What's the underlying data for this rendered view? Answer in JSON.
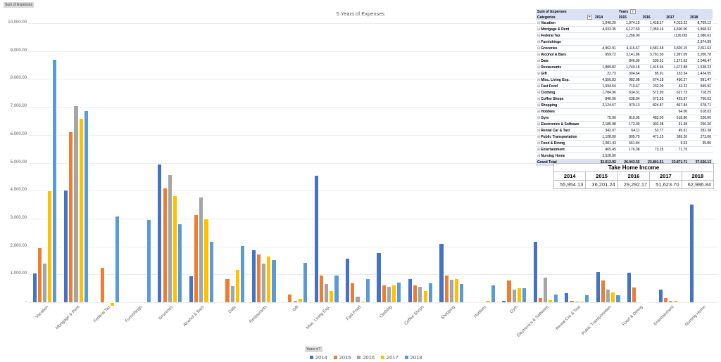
{
  "field_buttons": {
    "values_field": "Sum of Expenses",
    "legend_field": "Years"
  },
  "chart_data": {
    "type": "bar",
    "title": "5 Years of Expenses",
    "xlabel": "",
    "ylabel": "",
    "ylim": [
      0,
      10000
    ],
    "yticks": [
      "-",
      "1,000.00",
      "2,000.00",
      "3,000.00",
      "4,000.00",
      "5,000.00",
      "6,000.00",
      "7,000.00",
      "8,000.00",
      "9,000.00",
      "10,000.00"
    ],
    "grid": true,
    "legend_position": "bottom",
    "categories": [
      "Vacation",
      "Mortgage & Rent",
      "Federal Tax",
      "Furnishings",
      "Groceries",
      "Alcohol & Bars",
      "Date",
      "Restaurants",
      "Gift",
      "Misc. Living Exp.",
      "Fast Food",
      "Clothing",
      "Coffee Shops",
      "Shopping",
      "Hobbies",
      "Gym",
      "Electronics & Software",
      "Rental Car & Taxi",
      "Public Transportation",
      "Food & Dining",
      "Entertainment",
      "Nursing Home"
    ],
    "series": [
      {
        "name": "2014",
        "color": "#4472c4",
        "values": [
          1049.2,
          4033.35,
          null,
          null,
          4962.91,
          959.72,
          null,
          1889.82,
          22.73,
          4556.03,
          1594.64,
          1784.96,
          846.06,
          2124.57,
          null,
          75.0,
          2185.98,
          342.07,
          1108.0,
          1081.43,
          469.45,
          3528.0
        ]
      },
      {
        "name": "2015",
        "color": "#ed7d31",
        "values": [
          1974.19,
          6127.5,
          1266.0,
          null,
          4116.67,
          3141.86,
          846.9,
          1740.18,
          304.64,
          982.08,
          710.67,
          634.31,
          638.04,
          970.13,
          null,
          810.05,
          172.3,
          64.11,
          805.7,
          561.84,
          176.38,
          null
        ]
      },
      {
        "name": "2016",
        "color": "#a5a5a5",
        "values": [
          1418.17,
          7059.16,
          null,
          null,
          4581.68,
          3781.5,
          599.51,
          1415.94,
          85.91,
          674.18,
          232.09,
          572.9,
          572.35,
          824.87,
          null,
          483.0,
          902.08,
          53.77,
          471.15,
          null,
          73.25,
          null
        ]
      },
      {
        "name": "2017",
        "color": "#ffc000",
        "values": [
          4013.22,
          6600.0,
          -126.0,
          null,
          3820.15,
          2997.09,
          1171.63,
          1672.88,
          153.34,
          430.27,
          43.22,
          627.73,
          429.97,
          867.84,
          64.0,
          518.8,
          91.38,
          45.61,
          369.2,
          9.63,
          71.75,
          null
        ]
      },
      {
        "name": "2018",
        "color": "#5b9bd5",
        "values": [
          8709.12,
          6868.32,
          3086.63,
          2974.99,
          2811.63,
          2200.78,
          2048.47,
          1538.23,
          1424.05,
          991.47,
          849.92,
          718.25,
          700.03,
          678.71,
          618.03,
          520.0,
          296.26,
          282.38,
          273.0,
          35.86,
          null,
          null
        ]
      }
    ]
  },
  "pivot_table": {
    "corner_label": "Sum of Expenses",
    "column_field": "Years",
    "row_field": "Categories",
    "years": [
      "2014",
      "2015",
      "2016",
      "2017",
      "2018"
    ],
    "rows": [
      {
        "category": "Vacation",
        "values": [
          "1,049.20",
          "1,974.19",
          "1,418.17",
          "4,013.22",
          "8,709.12"
        ]
      },
      {
        "category": "Mortgage & Rent",
        "values": [
          "4,033.35",
          "6,127.50",
          "7,059.16",
          "6,600.00",
          "6,868.32"
        ]
      },
      {
        "category": "Federal Tax",
        "values": [
          "",
          "1,266.00",
          "",
          "(126.00)",
          "3,086.63"
        ]
      },
      {
        "category": "Furnishings",
        "values": [
          "",
          "",
          "",
          "",
          "2,974.99"
        ]
      },
      {
        "category": "Groceries",
        "values": [
          "4,962.91",
          "4,116.67",
          "4,581.68",
          "3,820.15",
          "2,811.63"
        ]
      },
      {
        "category": "Alcohol & Bars",
        "values": [
          "959.72",
          "3,141.86",
          "3,781.50",
          "2,997.09",
          "2,200.78"
        ]
      },
      {
        "category": "Date",
        "values": [
          "",
          "846.90",
          "599.51",
          "1,171.63",
          "2,048.47"
        ]
      },
      {
        "category": "Restaurants",
        "values": [
          "1,889.82",
          "1,740.18",
          "1,415.94",
          "1,672.88",
          "1,538.23"
        ]
      },
      {
        "category": "Gift",
        "values": [
          "22.73",
          "304.64",
          "85.91",
          "153.34",
          "1,424.05"
        ]
      },
      {
        "category": "Misc. Living Exp.",
        "values": [
          "4,556.03",
          "982.08",
          "674.18",
          "430.27",
          "991.47"
        ]
      },
      {
        "category": "Fast Food",
        "values": [
          "1,594.64",
          "710.67",
          "232.09",
          "43.22",
          "849.92"
        ]
      },
      {
        "category": "Clothing",
        "values": [
          "1,784.96",
          "634.31",
          "572.90",
          "627.73",
          "718.25"
        ]
      },
      {
        "category": "Coffee Shops",
        "values": [
          "846.06",
          "638.04",
          "572.35",
          "429.97",
          "700.03"
        ]
      },
      {
        "category": "Shopping",
        "values": [
          "2,124.57",
          "970.13",
          "824.87",
          "867.84",
          "678.71"
        ]
      },
      {
        "category": "Hobbies",
        "values": [
          "",
          "",
          "",
          "64.00",
          "618.03"
        ]
      },
      {
        "category": "Gym",
        "values": [
          "75.00",
          "810.05",
          "483.00",
          "518.80",
          "520.00"
        ]
      },
      {
        "category": "Electronics & Software",
        "values": [
          "2,185.98",
          "172.30",
          "902.08",
          "91.38",
          "296.26"
        ]
      },
      {
        "category": "Rental Car & Taxi",
        "values": [
          "342.07",
          "64.11",
          "53.77",
          "45.61",
          "282.38"
        ]
      },
      {
        "category": "Public Transportation",
        "values": [
          "1,108.00",
          "805.70",
          "471.15",
          "369.20",
          "273.00"
        ]
      },
      {
        "category": "Food & Dining",
        "values": [
          "1,081.43",
          "561.84",
          "",
          "9.63",
          "35.86"
        ]
      },
      {
        "category": "Entertainment",
        "values": [
          "469.45",
          "176.38",
          "73.25",
          "71.75",
          ""
        ]
      },
      {
        "category": "Nursing Home",
        "values": [
          "3,528.00",
          "",
          "",
          "",
          ""
        ]
      }
    ],
    "grand_total_label": "Grand Total",
    "grand_total": [
      "32,613.92",
      "26,043.55",
      "23,801.51",
      "23,871.71",
      "37,626.13"
    ]
  },
  "take_home_income": {
    "title": "Take Home Income",
    "years": [
      "2014",
      "2015",
      "2016",
      "2017",
      "2018"
    ],
    "values": [
      "55,954.13",
      "36,201.24",
      "29,292.17",
      "51,623.70",
      "62,986.84"
    ]
  }
}
